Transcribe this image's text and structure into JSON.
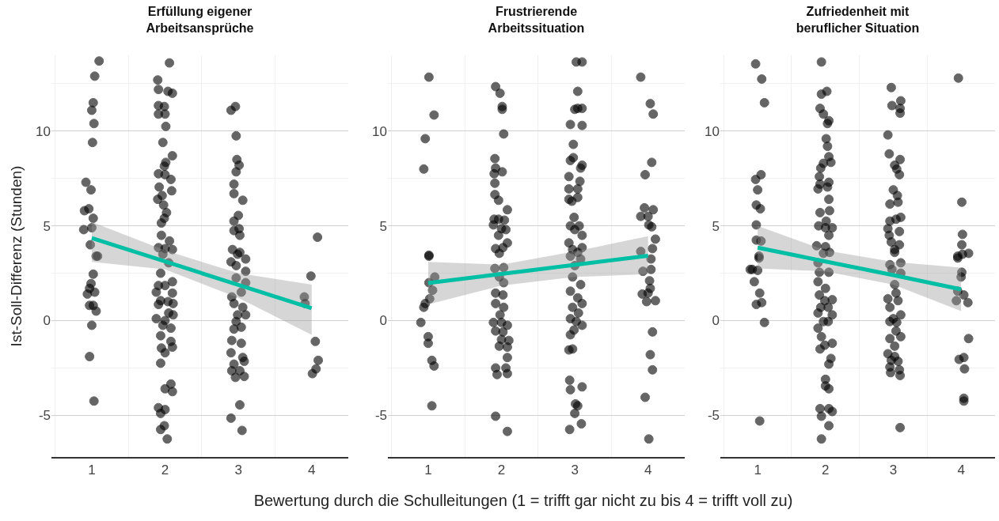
{
  "chart_data": [
    {
      "type": "scatter",
      "title": "Erfüllung eigener\nArbeitsansprüche",
      "ylabel": "Ist-Soll-Differenz (Stunden)",
      "xlim": [
        0.45,
        4.5
      ],
      "xticks": [
        1,
        2,
        3,
        4
      ],
      "ylim": [
        -7.2,
        14
      ],
      "yticks": [
        -5,
        0,
        5,
        10
      ],
      "grid": "y",
      "series": [
        {
          "marker": "circle",
          "color": "#000000",
          "x": [
            1.1,
            1.04,
            1.02,
            1.0,
            1.03,
            1.01,
            0.92,
            0.99,
            0.96,
            0.9,
            1.02,
            1.0,
            0.89,
            0.98,
            1.06,
            1.08,
            1.02,
            0.99,
            0.97,
            0.94,
            1.04,
            0.97,
            1.02,
            1.06,
            1.0,
            0.97,
            1.03,
            2.06,
            1.9,
            1.91,
            2.04,
            2.1,
            1.91,
            1.99,
            1.91,
            2.0,
            2.01,
            1.97,
            2.1,
            2.01,
            1.99,
            1.91,
            2.0,
            2.08,
            1.92,
            2.09,
            1.96,
            1.9,
            1.98,
            2.02,
            1.99,
            1.95,
            1.95,
            2.06,
            1.91,
            2.0,
            2.1,
            1.97,
            2.05,
            1.94,
            2.1,
            1.91,
            2.0,
            1.88,
            2.1,
            1.94,
            2.04,
            1.91,
            2.11,
            2.05,
            1.88,
            2.0,
            2.11,
            1.97,
            2.08,
            1.94,
            2.08,
            1.95,
            2.1,
            2.0,
            1.94,
            2.08,
            2.0,
            2.1,
            1.91,
            2.0,
            1.94,
            1.99,
            1.94,
            2.03,
            2.96,
            2.9,
            2.97,
            2.98,
            3.01,
            2.97,
            2.94,
            2.94,
            3.06,
            3.0,
            2.94,
            3.01,
            2.94,
            3.02,
            2.92,
            3.02,
            2.99,
            2.9,
            3.1,
            2.97,
            3.1,
            2.97,
            3.1,
            3.04,
            2.91,
            2.94,
            3.06,
            2.99,
            3.1,
            2.97,
            3.04,
            2.94,
            2.91,
            3.04,
            2.9,
            3.06,
            2.94,
            3.08,
            2.91,
            3.02,
            2.96,
            3.08,
            3.02,
            2.9,
            3.05,
            4.08,
            3.99,
            3.9,
            3.91,
            4.05,
            4.09,
            4.06,
            4.01
          ],
          "values": [
            13.7,
            12.9,
            11.5,
            11.1,
            10.4,
            9.4,
            7.3,
            6.9,
            5.9,
            5.8,
            5.4,
            4.9,
            4.8,
            4.0,
            3.4,
            3.4,
            2.45,
            1.95,
            1.7,
            1.4,
            1.5,
            0.8,
            0.8,
            0.5,
            -0.25,
            -1.9,
            -4.25,
            13.6,
            12.7,
            12.2,
            12.1,
            12.0,
            11.35,
            11.3,
            10.9,
            10.9,
            10.25,
            9.4,
            8.7,
            8.35,
            8.15,
            7.75,
            7.7,
            7.45,
            7.05,
            6.85,
            6.6,
            6.4,
            6.1,
            5.7,
            5.4,
            5.15,
            4.5,
            4.2,
            3.85,
            3.8,
            3.75,
            3.5,
            3.05,
            2.5,
            2.05,
            1.85,
            1.85,
            1.5,
            1.45,
            1.05,
            1.0,
            0.85,
            0.9,
            0.4,
            0.1,
            0.0,
            0.3,
            -0.25,
            -0.4,
            -0.8,
            -1.1,
            -1.45,
            -1.4,
            -1.7,
            -2.25,
            -3.35,
            -3.6,
            -3.75,
            -4.6,
            -4.7,
            -4.9,
            -5.55,
            -5.75,
            -6.25,
            11.3,
            11.1,
            9.75,
            8.5,
            8.2,
            7.85,
            7.2,
            6.7,
            6.35,
            5.55,
            5.25,
            4.85,
            4.75,
            4.5,
            3.75,
            3.6,
            3.5,
            3.1,
            3.25,
            2.9,
            2.6,
            2.25,
            2.0,
            1.5,
            1.25,
            0.9,
            0.7,
            0.3,
            0.3,
            -0.05,
            -0.35,
            -0.45,
            -1.05,
            -1.2,
            -1.7,
            -1.95,
            -2.3,
            -2.15,
            -2.65,
            -2.65,
            -3.0,
            -2.95,
            -4.45,
            -5.15,
            -5.8,
            4.4,
            2.35,
            1.25,
            0.9,
            -1.1,
            -2.1,
            -2.55,
            -2.8
          ]
        },
        {
          "type": "line",
          "color": "#00bfa5",
          "x": [
            1,
            2,
            3,
            4
          ],
          "values": [
            4.35,
            3.12,
            1.88,
            0.65
          ],
          "lower": [
            3.1,
            2.7,
            1.2,
            -0.75
          ],
          "upper": [
            5.2,
            3.7,
            2.5,
            1.9
          ]
        }
      ]
    },
    {
      "type": "scatter",
      "title": "Frustrierende\nArbeitssituation",
      "xlabel": "Bewertung durch die Schulleitungen (1 = trifft gar nicht zu bis 4 = trifft voll zu)",
      "xlim": [
        0.45,
        4.5
      ],
      "xticks": [
        1,
        2,
        3,
        4
      ],
      "ylim": [
        -7.2,
        14
      ],
      "yticks": [
        -5,
        0,
        5,
        10
      ],
      "grid": "y",
      "series": [
        {
          "marker": "circle",
          "color": "#000000",
          "x": [
            1.01,
            1.08,
            0.96,
            0.94,
            1.01,
            1.01,
            1.09,
            1.01,
            1.06,
            1.02,
            0.96,
            0.94,
            0.9,
            1.0,
            1.0,
            1.05,
            1.08,
            1.05,
            1.92,
            1.98,
            2.01,
            2.01,
            2.03,
            1.91,
            1.92,
            2.01,
            1.9,
            1.91,
            1.91,
            1.96,
            2.08,
            1.9,
            1.96,
            2.04,
            1.89,
            2.0,
            2.06,
            1.96,
            2.08,
            1.92,
            2.02,
            1.97,
            1.91,
            2.03,
            1.97,
            2.03,
            1.92,
            2.02,
            1.92,
            2.03,
            1.98,
            1.89,
            2.0,
            2.08,
            1.92,
            2.02,
            2.1,
            2.0,
            1.97,
            2.08,
            2.08,
            1.92,
            2.06,
            1.94,
            2.08,
            1.92,
            2.08,
            3.02,
            3.1,
            3.04,
            3.0,
            3.1,
            3.04,
            2.94,
            3.1,
            2.98,
            2.94,
            2.98,
            3.08,
            3.1,
            2.92,
            3.07,
            2.92,
            3.04,
            2.92,
            3.04,
            2.96,
            2.99,
            2.94,
            3.06,
            3.0,
            3.1,
            2.92,
            3.1,
            2.97,
            3.04,
            2.94,
            3.08,
            3.0,
            2.97,
            3.08,
            2.94,
            3.04,
            3.1,
            2.97,
            3.05,
            2.94,
            3.02,
            3.1,
            2.99,
            2.94,
            2.92,
            2.97,
            2.93,
            2.94,
            3.1,
            3.01,
            3.04,
            3.0,
            2.93,
            3.09,
            3.9,
            4.03,
            4.07,
            4.05,
            3.96,
            3.95,
            4.07,
            3.9,
            4.0,
            4.01,
            4.05,
            4.1,
            3.9,
            4.06,
            4.04,
            3.93,
            4.04,
            4.02,
            4.03,
            3.92,
            4.0,
            4.1,
            3.98,
            4.06,
            4.03,
            4.06,
            3.96,
            4.01
          ],
          "values": [
            12.85,
            10.85,
            9.6,
            8.0,
            3.45,
            3.4,
            2.3,
            2.0,
            1.6,
            1.15,
            0.9,
            0.7,
            -0.1,
            -0.85,
            -1.2,
            -2.1,
            -2.4,
            -4.5,
            12.35,
            12.0,
            11.3,
            11.15,
            9.85,
            8.55,
            8.05,
            7.85,
            7.75,
            7.25,
            6.65,
            6.35,
            5.85,
            5.35,
            5.35,
            5.3,
            5.05,
            4.85,
            4.8,
            4.5,
            4.1,
            3.8,
            3.85,
            3.55,
            2.75,
            2.8,
            2.3,
            2.0,
            1.45,
            1.35,
            0.9,
            0.7,
            0.3,
            -0.1,
            -0.1,
            -0.25,
            -0.55,
            -0.6,
            -1.05,
            -1.0,
            -1.35,
            -1.4,
            -1.95,
            -2.5,
            -2.5,
            -2.85,
            -2.8,
            -5.05,
            -5.85,
            13.65,
            13.65,
            12.1,
            11.15,
            11.2,
            11.2,
            10.35,
            10.3,
            9.3,
            8.45,
            8.6,
            8.05,
            8.2,
            7.6,
            7.35,
            6.95,
            6.95,
            6.4,
            6.5,
            6.3,
            5.45,
            5.0,
            5.0,
            4.8,
            4.5,
            4.1,
            3.85,
            3.75,
            3.6,
            3.4,
            3.25,
            2.9,
            2.3,
            1.9,
            1.55,
            1.2,
            0.9,
            0.7,
            0.4,
            0.1,
            -0.05,
            -0.25,
            -0.5,
            -0.75,
            -1.55,
            -1.5,
            -3.15,
            -3.65,
            -3.5,
            -4.4,
            -4.5,
            -4.9,
            -5.75,
            -5.45,
            12.85,
            11.45,
            10.9,
            8.35,
            7.7,
            5.95,
            5.85,
            5.5,
            5.5,
            5.05,
            4.95,
            4.3,
            3.65,
            3.8,
            3.25,
            2.6,
            2.7,
            2.1,
            1.7,
            1.4,
            1.45,
            1.05,
            1.0,
            -0.6,
            -1.8,
            -2.6,
            -4.05,
            -6.25
          ]
        },
        {
          "type": "line",
          "color": "#00bfa5",
          "x": [
            1,
            2,
            3,
            4
          ],
          "values": [
            1.98,
            2.46,
            2.94,
            3.42
          ],
          "lower": [
            0.85,
            1.85,
            2.3,
            2.45
          ],
          "upper": [
            3.1,
            2.95,
            3.65,
            4.45
          ]
        }
      ]
    },
    {
      "type": "scatter",
      "title": "Zufriedenheit mit\nberuflicher Situation",
      "xlim": [
        0.45,
        4.5
      ],
      "xticks": [
        1,
        2,
        3,
        4
      ],
      "ylim": [
        -7.2,
        14
      ],
      "yticks": [
        -5,
        0,
        5,
        10
      ],
      "grid": "y",
      "series": [
        {
          "marker": "circle",
          "color": "#000000",
          "x": [
            0.97,
            1.06,
            1.1,
            1.05,
            0.97,
            1.0,
            0.98,
            1.04,
            0.98,
            0.98,
            1.05,
            1.02,
            1.02,
            0.89,
            0.92,
            1.0,
            0.95,
            1.03,
            0.98,
            1.06,
            1.1,
            1.03,
            1.94,
            1.94,
            2.02,
            1.92,
            1.97,
            2.05,
            2.03,
            2.01,
            2.03,
            2.05,
            2.08,
            1.97,
            1.93,
            1.91,
            2.05,
            1.92,
            1.89,
            2.03,
            2.05,
            1.92,
            2.06,
            2.01,
            1.9,
            2.0,
            2.1,
            2.05,
            1.87,
            2.0,
            2.06,
            1.97,
            1.89,
            2.05,
            1.91,
            1.89,
            2.0,
            1.91,
            2.1,
            1.99,
            1.93,
            2.04,
            1.89,
            2.1,
            1.97,
            2.04,
            1.89,
            1.94,
            2.1,
            1.99,
            1.92,
            2.08,
            2.05,
            2.0,
            2.0,
            2.05,
            1.92,
            2.05,
            2.1,
            1.94,
            2.05,
            1.94,
            2.97,
            3.11,
            2.98,
            3.1,
            3.1,
            2.92,
            2.94,
            3.1,
            3.02,
            3.05,
            3.09,
            3.0,
            3.06,
            2.95,
            3.07,
            2.95,
            3.11,
            3.04,
            2.92,
            3.09,
            2.94,
            2.97,
            3.09,
            3.02,
            3.02,
            2.95,
            3.11,
            2.98,
            3.11,
            3.02,
            3.04,
            2.92,
            3.07,
            2.95,
            3.11,
            3.0,
            2.95,
            3.05,
            3.04,
            3.11,
            2.95,
            3.02,
            2.92,
            3.02,
            2.97,
            3.07,
            2.95,
            3.09,
            2.96,
            3.1,
            3.1,
            3.96,
            4.01,
            4.02,
            4.01,
            3.95,
            4.11,
            3.95,
            4.02,
            4.01,
            4.0,
            3.95,
            4.04,
            3.93,
            4.1,
            4.11,
            3.97,
            4.04,
            4.05,
            4.04,
            4.04
          ],
          "values": [
            13.55,
            12.75,
            11.5,
            7.7,
            7.45,
            6.9,
            6.1,
            5.9,
            5.05,
            4.25,
            4.2,
            3.4,
            3.3,
            2.7,
            2.7,
            2.65,
            2.05,
            1.45,
            0.85,
            0.95,
            -0.1,
            -5.3,
            13.65,
            11.95,
            12.1,
            11.2,
            10.9,
            10.55,
            10.4,
            9.6,
            9.2,
            8.65,
            8.35,
            8.3,
            8.05,
            7.6,
            7.3,
            7.2,
            6.95,
            7.05,
            6.4,
            5.7,
            5.8,
            5.25,
            5.0,
            4.9,
            4.9,
            4.5,
            3.95,
            3.9,
            3.6,
            3.55,
            3.05,
            2.55,
            2.55,
            2.05,
            1.7,
            1.35,
            1.1,
            1.05,
            0.7,
            0.7,
            0.4,
            0.3,
            -0.05,
            -0.05,
            -0.4,
            -0.85,
            -1.2,
            -1.3,
            -1.5,
            -2.0,
            -2.3,
            -3.1,
            -3.45,
            -3.6,
            -4.65,
            -4.65,
            -4.8,
            -5.05,
            -5.55,
            -6.25,
            12.3,
            11.6,
            11.35,
            11.2,
            10.95,
            9.8,
            8.8,
            8.5,
            8.2,
            8.0,
            7.7,
            6.9,
            6.6,
            6.15,
            6.25,
            5.25,
            5.45,
            5.35,
            4.85,
            4.7,
            4.5,
            4.15,
            4.0,
            3.75,
            3.6,
            2.95,
            3.05,
            2.7,
            2.5,
            1.9,
            1.45,
            1.15,
            1.05,
            0.7,
            0.3,
            0.1,
            -0.05,
            -0.1,
            -0.55,
            -0.85,
            -0.95,
            -1.35,
            -1.75,
            -1.9,
            -2.1,
            -2.15,
            -2.45,
            -2.6,
            -2.75,
            -2.9,
            -5.65,
            12.8,
            6.25,
            4.55,
            4.0,
            3.4,
            3.55,
            3.3,
            3.5,
            2.55,
            2.3,
            1.55,
            1.35,
            1.05,
            0.95,
            -0.95,
            -2.05,
            -1.95,
            -2.55,
            -4.1,
            -4.25
          ]
        },
        {
          "type": "line",
          "color": "#00bfa5",
          "x": [
            1,
            2,
            3,
            4
          ],
          "values": [
            3.85,
            3.12,
            2.4,
            1.65
          ],
          "lower": [
            2.75,
            2.6,
            1.9,
            0.5
          ],
          "upper": [
            5.0,
            3.7,
            3.1,
            2.8
          ]
        }
      ]
    }
  ]
}
